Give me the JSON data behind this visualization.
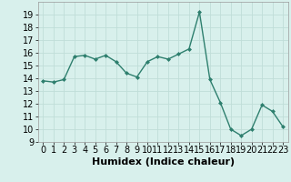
{
  "x": [
    0,
    1,
    2,
    3,
    4,
    5,
    6,
    7,
    8,
    9,
    10,
    11,
    12,
    13,
    14,
    15,
    16,
    17,
    18,
    19,
    20,
    21,
    22,
    23
  ],
  "y": [
    13.8,
    13.7,
    13.9,
    15.7,
    15.8,
    15.5,
    15.8,
    15.3,
    14.4,
    14.1,
    15.3,
    15.7,
    15.5,
    15.9,
    16.3,
    19.2,
    13.9,
    12.1,
    10.0,
    9.5,
    10.0,
    11.9,
    11.4,
    10.2
  ],
  "xlabel": "Humidex (Indice chaleur)",
  "ylim": [
    9,
    20
  ],
  "xlim": [
    -0.5,
    23.5
  ],
  "yticks": [
    9,
    10,
    11,
    12,
    13,
    14,
    15,
    16,
    17,
    18,
    19
  ],
  "xticks": [
    0,
    1,
    2,
    3,
    4,
    5,
    6,
    7,
    8,
    9,
    10,
    11,
    12,
    13,
    14,
    15,
    16,
    17,
    18,
    19,
    20,
    21,
    22,
    23
  ],
  "line_color": "#2e7f6e",
  "marker": "D",
  "marker_size": 2,
  "bg_color": "#d8f0ec",
  "grid_color": "#c0ddd8",
  "tick_fontsize": 7,
  "label_fontsize": 8
}
